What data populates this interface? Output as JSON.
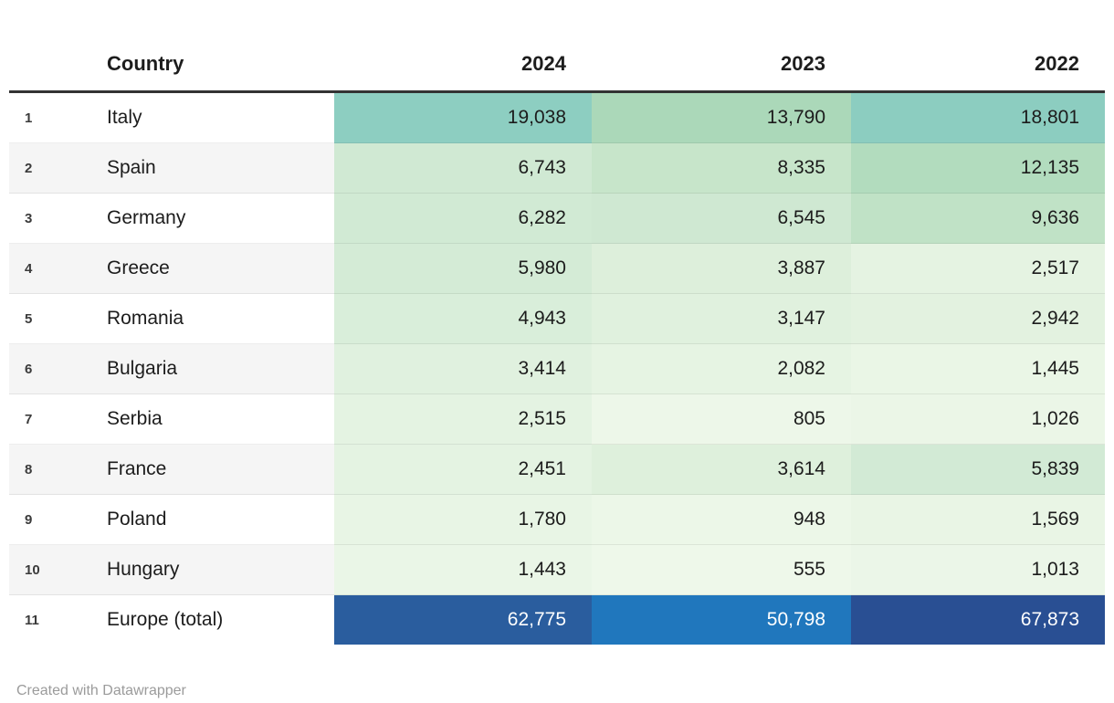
{
  "table": {
    "columns": [
      "Country",
      "2024",
      "2023",
      "2022"
    ],
    "rows": [
      {
        "rank": "1",
        "country": "Italy",
        "values": [
          "19,038",
          "13,790",
          "18,801"
        ],
        "colors": [
          "#8dcec1",
          "#abd8b9",
          "#8ccdc0"
        ],
        "text_color": "#1c1c1c"
      },
      {
        "rank": "2",
        "country": "Spain",
        "values": [
          "6,743",
          "8,335",
          "12,135"
        ],
        "colors": [
          "#d0e9d3",
          "#c7e5ca",
          "#b2dcbe"
        ],
        "text_color": "#1c1c1c"
      },
      {
        "rank": "3",
        "country": "Germany",
        "values": [
          "6,282",
          "6,545",
          "9,636"
        ],
        "colors": [
          "#d1ead4",
          "#cfe8d2",
          "#c0e2c6"
        ],
        "text_color": "#1c1c1c"
      },
      {
        "rank": "4",
        "country": "Greece",
        "values": [
          "5,980",
          "3,887",
          "2,517"
        ],
        "colors": [
          "#d4ebd6",
          "#ddefdb",
          "#e5f3e2"
        ],
        "text_color": "#1c1c1c"
      },
      {
        "rank": "5",
        "country": "Romania",
        "values": [
          "4,943",
          "3,147",
          "2,942"
        ],
        "colors": [
          "#d9eeda",
          "#e0f1de",
          "#e3f2e0"
        ],
        "text_color": "#1c1c1c"
      },
      {
        "rank": "6",
        "country": "Bulgaria",
        "values": [
          "3,414",
          "2,082",
          "1,445"
        ],
        "colors": [
          "#e0f1df",
          "#e6f4e3",
          "#eaf6e6"
        ],
        "text_color": "#1c1c1c"
      },
      {
        "rank": "7",
        "country": "Serbia",
        "values": [
          "2,515",
          "805",
          "1,026"
        ],
        "colors": [
          "#e4f3e2",
          "#edf7e9",
          "#ebf6e7"
        ],
        "text_color": "#1c1c1c"
      },
      {
        "rank": "8",
        "country": "France",
        "values": [
          "2,451",
          "3,614",
          "5,839"
        ],
        "colors": [
          "#e4f3e2",
          "#def0dc",
          "#d2ead5"
        ],
        "text_color": "#1c1c1c"
      },
      {
        "rank": "9",
        "country": "Poland",
        "values": [
          "1,780",
          "948",
          "1,569"
        ],
        "colors": [
          "#e8f5e5",
          "#ecf7e8",
          "#e9f5e5"
        ],
        "text_color": "#1c1c1c"
      },
      {
        "rank": "10",
        "country": "Hungary",
        "values": [
          "1,443",
          "555",
          "1,013"
        ],
        "colors": [
          "#eaf6e7",
          "#eef8ea",
          "#ebf6e8"
        ],
        "text_color": "#1c1c1c"
      },
      {
        "rank": "11",
        "country": "Europe (total)",
        "values": [
          "62,775",
          "50,798",
          "67,873"
        ],
        "colors": [
          "#2a5d9e",
          "#2077bd",
          "#294f93"
        ],
        "text_color": "#ffffff"
      }
    ],
    "style": {
      "header_border_color": "#333333",
      "even_row_stripe": "#f5f5f5",
      "scale_low_color": "#eef8ea",
      "scale_mid_color": "#8dcec1",
      "scale_high_color": "#294f93"
    }
  },
  "footer": {
    "credit": "Created with Datawrapper"
  },
  "chart_data": {
    "type": "table",
    "title": "",
    "categories": [
      "Italy",
      "Spain",
      "Germany",
      "Greece",
      "Romania",
      "Bulgaria",
      "Serbia",
      "France",
      "Poland",
      "Hungary",
      "Europe (total)"
    ],
    "series": [
      {
        "name": "2024",
        "values": [
          19038,
          6743,
          6282,
          5980,
          4943,
          3414,
          2515,
          2451,
          1780,
          1443,
          62775
        ]
      },
      {
        "name": "2023",
        "values": [
          13790,
          8335,
          6545,
          3887,
          3147,
          2082,
          805,
          3614,
          948,
          555,
          50798
        ]
      },
      {
        "name": "2022",
        "values": [
          18801,
          12135,
          9636,
          2517,
          2942,
          1445,
          1026,
          5839,
          1569,
          1013,
          67873
        ]
      }
    ],
    "layout_hints": {
      "heatmap_background": true,
      "value_alignment": "right",
      "ranked_rows": true
    }
  }
}
